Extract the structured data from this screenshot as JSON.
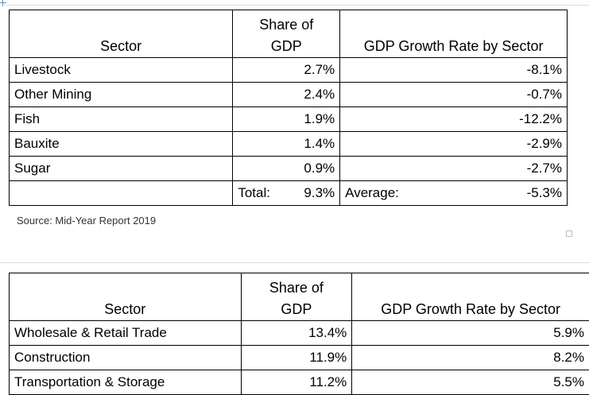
{
  "table1": {
    "headers": {
      "sector": "Sector",
      "share_line1": "Share of",
      "share_line2": "GDP",
      "growth": "GDP Growth Rate by Sector"
    },
    "rows": [
      {
        "sector": "Livestock",
        "share": "2.7%",
        "growth": "-8.1%"
      },
      {
        "sector": "Other Mining",
        "share": "2.4%",
        "growth": "-0.7%"
      },
      {
        "sector": "Fish",
        "share": "1.9%",
        "growth": "-12.2%"
      },
      {
        "sector": "Bauxite",
        "share": "1.4%",
        "growth": "-2.9%"
      },
      {
        "sector": "Sugar",
        "share": "0.9%",
        "growth": "-2.7%"
      }
    ],
    "footer": {
      "total_label": "Total:",
      "total_value": "9.3%",
      "average_label": "Average:",
      "average_value": "-5.3%"
    }
  },
  "source_note": "Source: Mid-Year Report 2019",
  "table2": {
    "headers": {
      "sector": "Sector",
      "share_line1": "Share of",
      "share_line2": "GDP",
      "growth": "GDP Growth Rate by Sector"
    },
    "rows": [
      {
        "sector": "Wholesale & Retail Trade",
        "share": "13.4%",
        "growth": "5.9%"
      },
      {
        "sector": "Construction",
        "share": "11.9%",
        "growth": "8.2%"
      },
      {
        "sector": "Transportation & Storage",
        "share": "11.2%",
        "growth": "5.5%"
      }
    ]
  }
}
